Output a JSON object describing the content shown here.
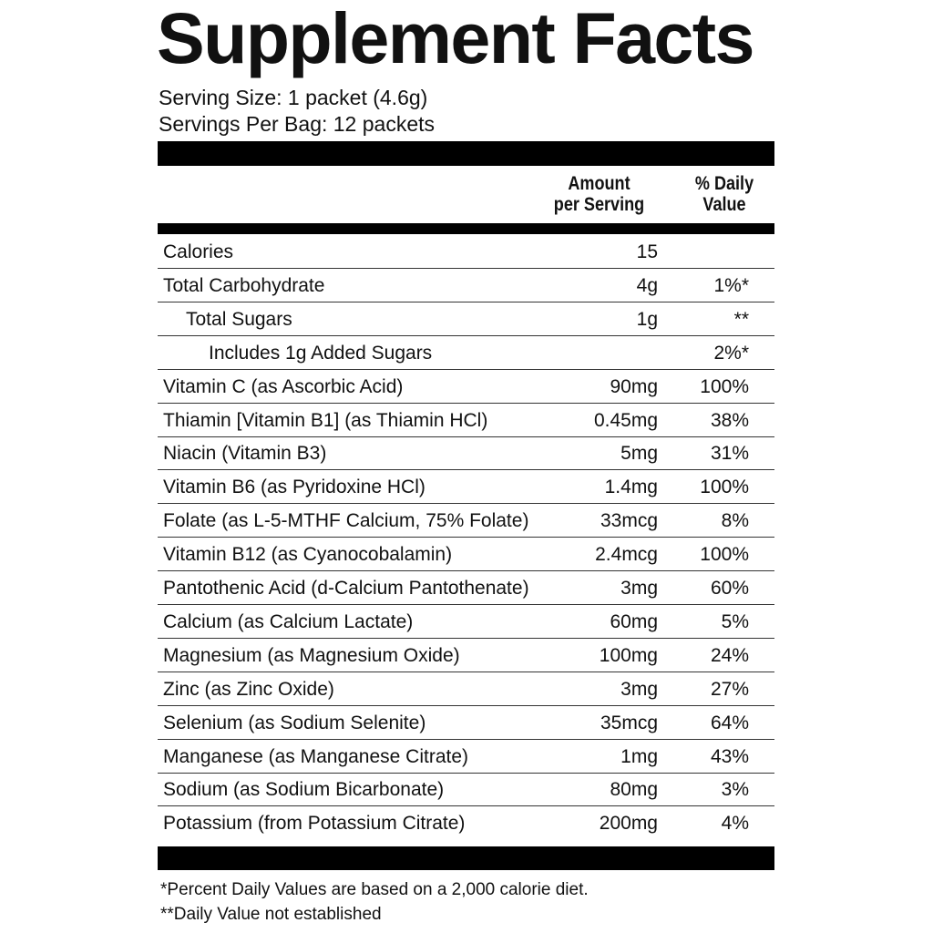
{
  "title": "Supplement Facts",
  "serving_size": "Serving Size: 1 packet (4.6g)",
  "servings_per": "Servings Per Bag: 12 packets",
  "header": {
    "amount_line1": "Amount",
    "amount_line2": "per Serving",
    "dv_line1": "% Daily",
    "dv_line2": "Value"
  },
  "rows": [
    {
      "name": "Calories",
      "amount": "15",
      "dv": "",
      "indent": 0
    },
    {
      "name": "Total Carbohydrate",
      "amount": "4g",
      "dv": "1%*",
      "indent": 0
    },
    {
      "name": "Total Sugars",
      "amount": "1g",
      "dv": "**",
      "indent": 1
    },
    {
      "name": "Includes 1g Added Sugars",
      "amount": "",
      "dv": "2%*",
      "indent": 2
    },
    {
      "name": "Vitamin C (as Ascorbic Acid)",
      "amount": "90mg",
      "dv": "100%",
      "indent": 0
    },
    {
      "name": "Thiamin [Vitamin B1] (as Thiamin HCl)",
      "amount": "0.45mg",
      "dv": "38%",
      "indent": 0
    },
    {
      "name": "Niacin (Vitamin B3)",
      "amount": "5mg",
      "dv": "31%",
      "indent": 0
    },
    {
      "name": "Vitamin B6 (as Pyridoxine HCl)",
      "amount": "1.4mg",
      "dv": "100%",
      "indent": 0
    },
    {
      "name": "Folate (as L-5-MTHF Calcium, 75% Folate)",
      "amount": "33mcg",
      "dv": "8%",
      "indent": 0
    },
    {
      "name": "Vitamin B12 (as Cyanocobalamin)",
      "amount": "2.4mcg",
      "dv": "100%",
      "indent": 0
    },
    {
      "name": "Pantothenic Acid (d-Calcium Pantothenate)",
      "amount": "3mg",
      "dv": "60%",
      "indent": 0
    },
    {
      "name": "Calcium (as Calcium Lactate)",
      "amount": "60mg",
      "dv": "5%",
      "indent": 0
    },
    {
      "name": "Magnesium (as Magnesium Oxide)",
      "amount": "100mg",
      "dv": "24%",
      "indent": 0
    },
    {
      "name": "Zinc (as Zinc Oxide)",
      "amount": "3mg",
      "dv": "27%",
      "indent": 0
    },
    {
      "name": "Selenium (as Sodium Selenite)",
      "amount": "35mcg",
      "dv": "64%",
      "indent": 0
    },
    {
      "name": "Manganese (as Manganese Citrate)",
      "amount": "1mg",
      "dv": "43%",
      "indent": 0
    },
    {
      "name": "Sodium (as Sodium Bicarbonate)",
      "amount": "80mg",
      "dv": "3%",
      "indent": 0
    },
    {
      "name": "Potassium (from Potassium Citrate)",
      "amount": "200mg",
      "dv": "4%",
      "indent": 0
    }
  ],
  "footnotes": [
    "*Percent Daily Values are based on a 2,000 calorie diet.",
    "**Daily Value not established"
  ]
}
